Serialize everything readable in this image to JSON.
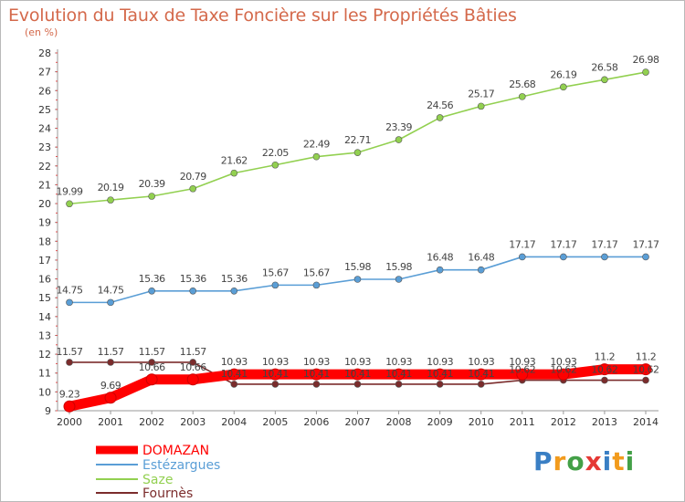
{
  "title": "Evolution du Taux de Taxe Foncière sur les Propriétés Bâties",
  "subtitle": "(en %)",
  "logo": "Proxiti",
  "chart_data": {
    "type": "line",
    "title": "Evolution du Taux de Taxe Foncière sur les Propriétés Bâties",
    "ylabel": "(en %)",
    "xlabel": "",
    "x": [
      "2000",
      "2001",
      "2002",
      "2003",
      "2004",
      "2005",
      "2006",
      "2007",
      "2008",
      "2009",
      "2010",
      "2011",
      "2012",
      "2013",
      "2014"
    ],
    "ylim": [
      9,
      28
    ],
    "yticks": [
      9,
      10,
      11,
      12,
      13,
      14,
      15,
      16,
      17,
      18,
      19,
      20,
      21,
      22,
      23,
      24,
      25,
      26,
      27,
      28
    ],
    "grid": false,
    "legend_position": "bottom-left",
    "series": [
      {
        "name": "DOMAZAN",
        "color": "#ff0000",
        "values": [
          9.23,
          9.69,
          10.66,
          10.66,
          10.93,
          10.93,
          10.93,
          10.93,
          10.93,
          10.93,
          10.93,
          10.93,
          10.93,
          11.2,
          11.2
        ],
        "labels": [
          "9.23",
          "9.69",
          "10.66",
          "10.66",
          "10.93",
          "10.93",
          "10.93",
          "10.93",
          "10.93",
          "10.93",
          "10.93",
          "10.93",
          "10.93",
          "11.2",
          "11.2"
        ]
      },
      {
        "name": "Estézargues",
        "color": "#5a9ed6",
        "values": [
          14.75,
          14.75,
          15.36,
          15.36,
          15.36,
          15.67,
          15.67,
          15.98,
          15.98,
          16.48,
          16.48,
          17.17,
          17.17,
          17.17,
          17.17
        ],
        "labels": [
          "14.75",
          "14.75",
          "15.36",
          "15.36",
          "15.36",
          "15.67",
          "15.67",
          "15.98",
          "15.98",
          "16.48",
          "16.48",
          "17.17",
          "17.17",
          "17.17",
          "17.17"
        ]
      },
      {
        "name": "Saze",
        "color": "#92d050",
        "values": [
          19.99,
          20.19,
          20.39,
          20.79,
          21.62,
          22.05,
          22.49,
          22.71,
          23.39,
          24.56,
          25.17,
          25.68,
          26.19,
          26.58,
          26.98
        ],
        "labels": [
          "19.99",
          "20.19",
          "20.39",
          "20.79",
          "21.62",
          "22.05",
          "22.49",
          "22.71",
          "23.39",
          "24.56",
          "25.17",
          "25.68",
          "26.19",
          "26.58",
          "26.98"
        ]
      },
      {
        "name": "Fournès",
        "color": "#7b2c2c",
        "values": [
          11.57,
          11.57,
          11.57,
          11.57,
          10.41,
          10.41,
          10.41,
          10.41,
          10.41,
          10.41,
          10.41,
          10.62,
          10.62,
          10.62,
          10.62
        ],
        "labels": [
          "11.57",
          "11.57",
          "11.57",
          "11.57",
          "10.41",
          "10.41",
          "10.41",
          "10.41",
          "10.41",
          "10.41",
          "10.41",
          "10.62",
          "10.62",
          "10.62",
          "10.62"
        ]
      }
    ]
  }
}
